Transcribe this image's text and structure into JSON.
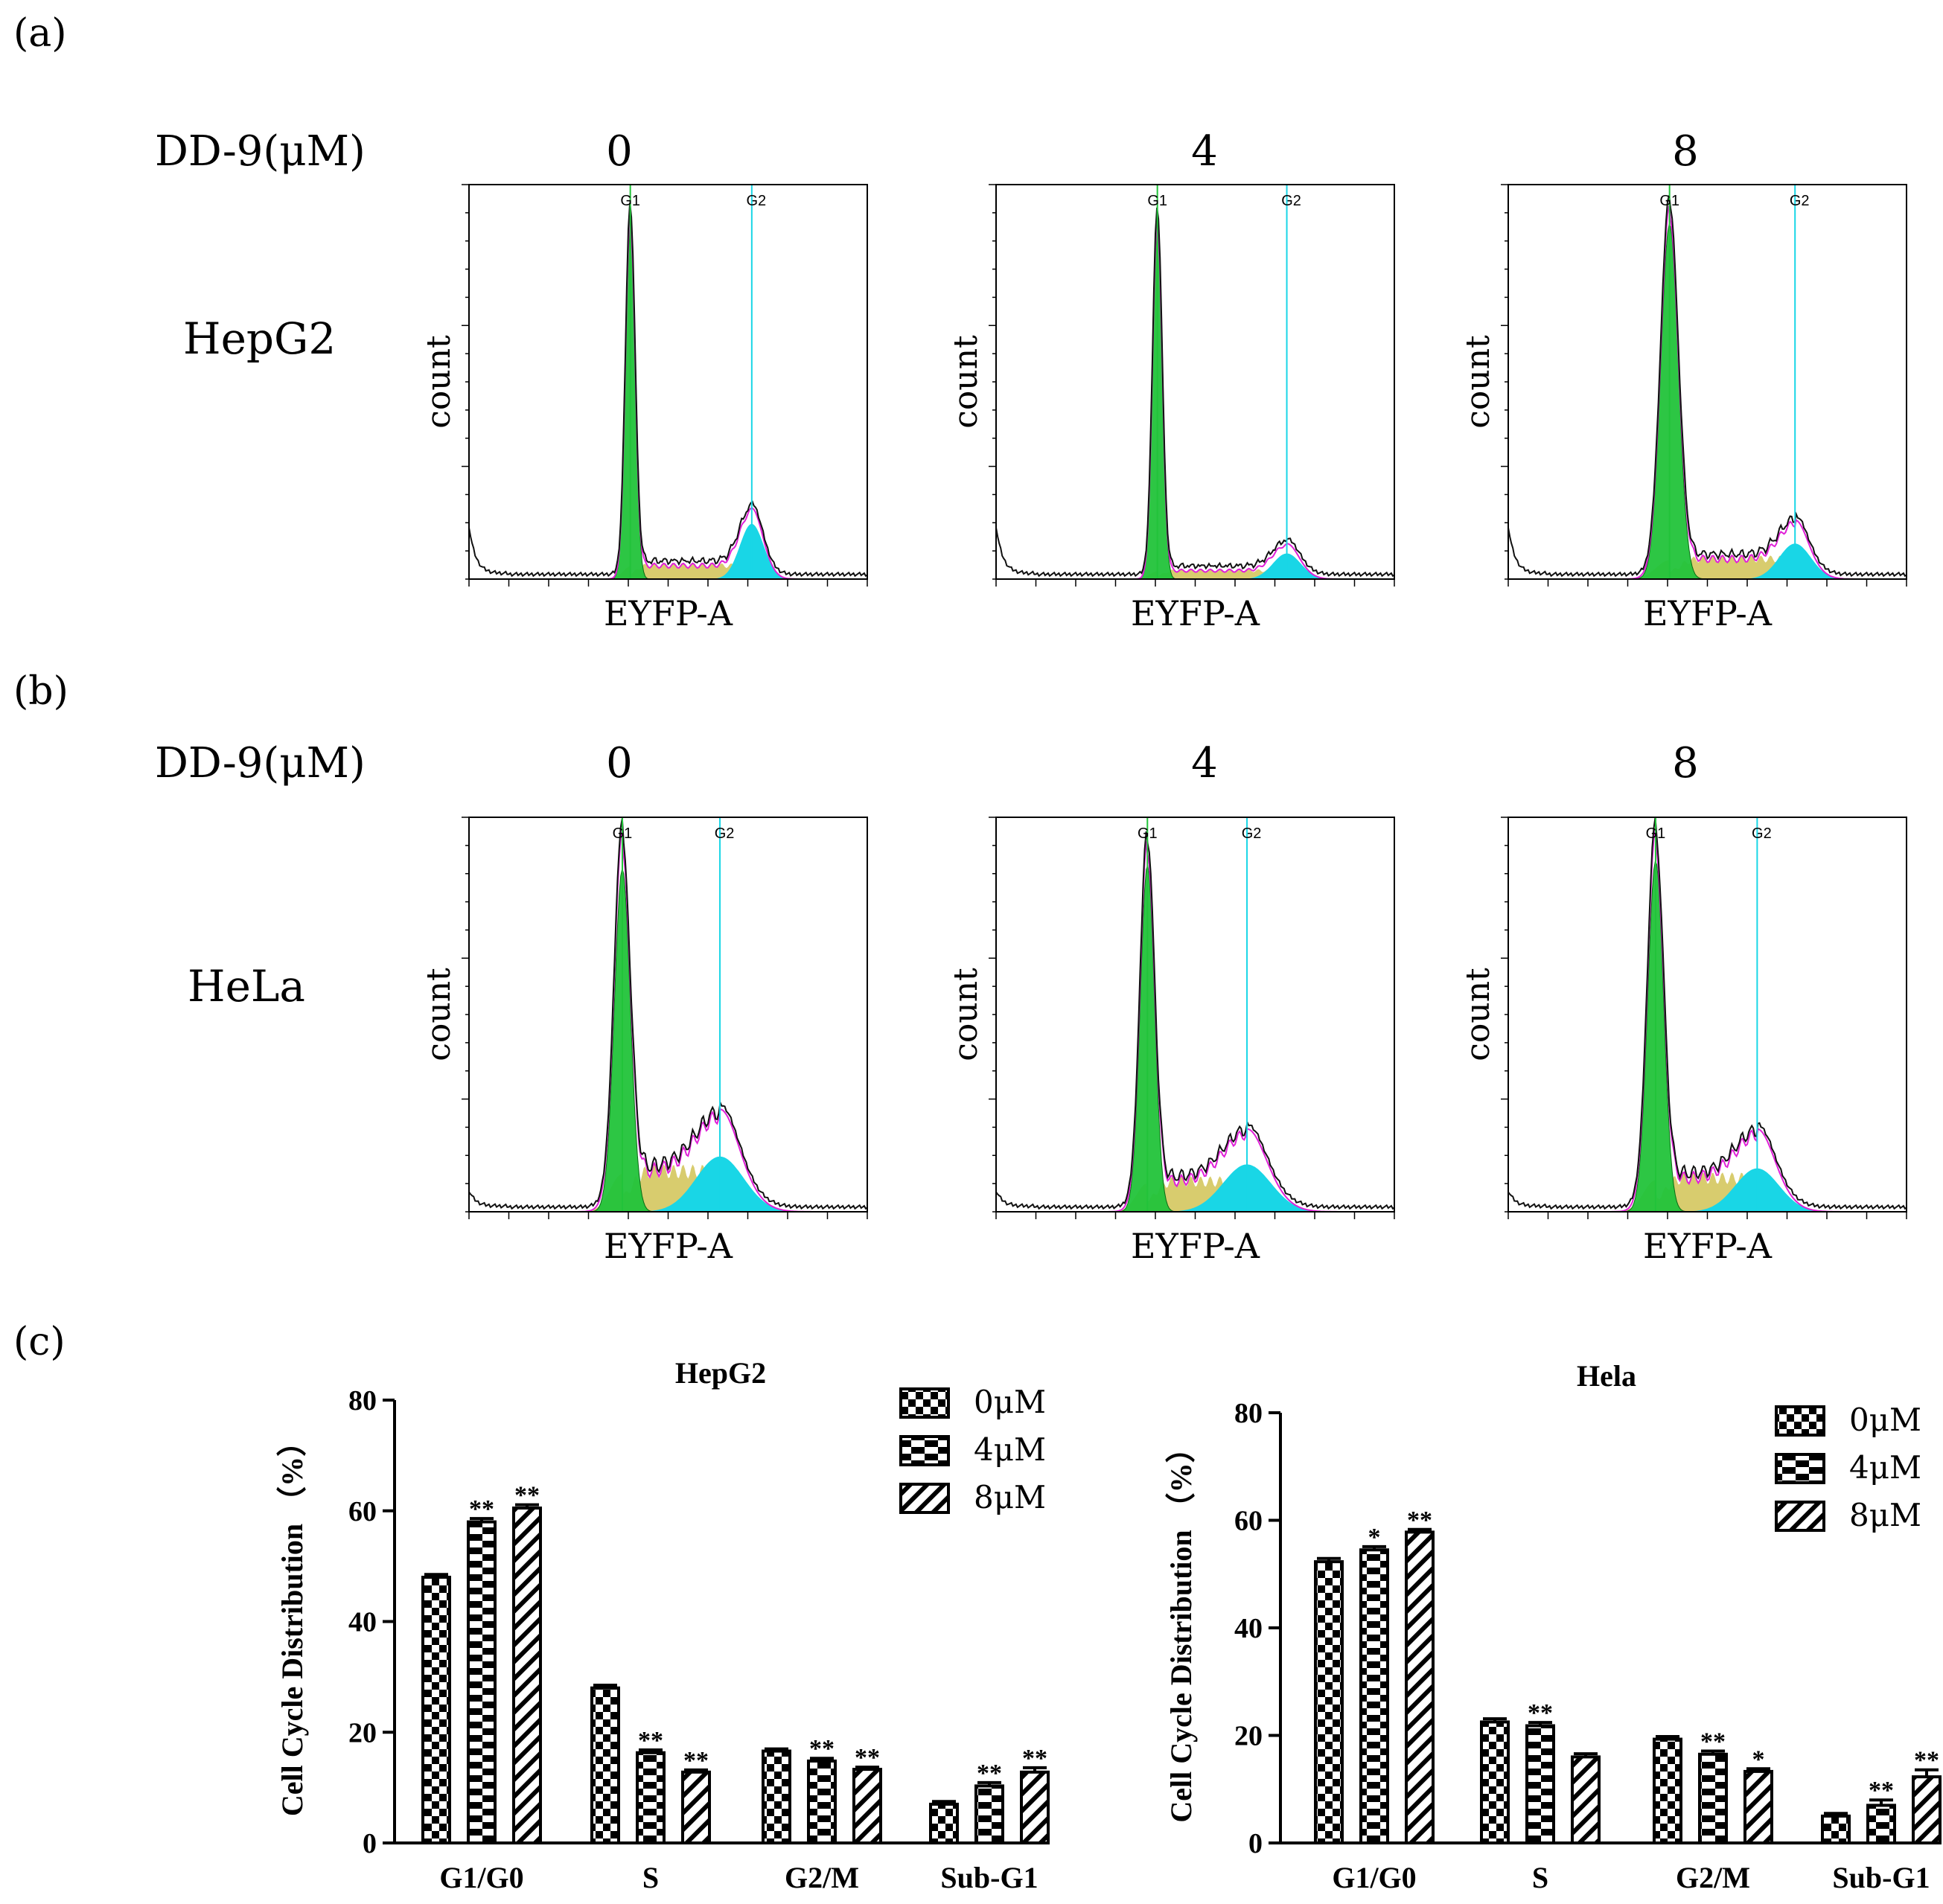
{
  "panel_labels": [
    "(a)",
    "(b)",
    "(c)"
  ],
  "dose_label": "DD-9(μM)",
  "doses": [
    "0",
    "4",
    "8"
  ],
  "cell_lines": [
    "HepG2",
    "HeLa"
  ],
  "histogram": {
    "xlabel": "EYFP-A",
    "ylabel": "count",
    "g1_marker": "G1",
    "g2_marker": "G2"
  },
  "chart_data": [
    {
      "type": "bar",
      "title": "HepG2",
      "ylabel": "Cell Cycle Distribution （%）",
      "xlabel": "",
      "categories": [
        "G1/G0",
        "S",
        "G2/M",
        "Sub-G1"
      ],
      "ylim": [
        0,
        80
      ],
      "yticks": [
        0,
        20,
        40,
        60,
        80
      ],
      "series": [
        {
          "name": "0μM",
          "pattern": "checker",
          "values": [
            48,
            28,
            16.6,
            7
          ],
          "errors": [
            0.5,
            0.5,
            0.4,
            0.5
          ],
          "sig": [
            "",
            "",
            "",
            ""
          ]
        },
        {
          "name": "4μM",
          "pattern": "blocks",
          "values": [
            58,
            16.3,
            14.8,
            10.3
          ],
          "errors": [
            0.6,
            0.5,
            0.5,
            0.6
          ],
          "sig": [
            "**",
            "**",
            "**",
            "**"
          ]
        },
        {
          "name": "8μM",
          "pattern": "hatch",
          "values": [
            60.5,
            12.8,
            13.3,
            12.8
          ],
          "errors": [
            0.6,
            0.4,
            0.4,
            0.8
          ],
          "sig": [
            "**",
            "**",
            "**",
            "**"
          ]
        }
      ],
      "legend_position": "top-right"
    },
    {
      "type": "bar",
      "title": "Hela",
      "ylabel": "Cell Cycle Distribution （%）",
      "xlabel": "",
      "categories": [
        "G1/G0",
        "S",
        "G2/M",
        "Sub-G1"
      ],
      "ylim": [
        0,
        80
      ],
      "yticks": [
        0,
        20,
        40,
        60,
        80
      ],
      "series": [
        {
          "name": "0μM",
          "pattern": "checker",
          "values": [
            52.3,
            22.5,
            19.3,
            5
          ],
          "errors": [
            0.6,
            0.6,
            0.5,
            0.5
          ],
          "sig": [
            "",
            "",
            "",
            ""
          ]
        },
        {
          "name": "4μM",
          "pattern": "blocks",
          "values": [
            54.5,
            21.8,
            16.5,
            7
          ],
          "errors": [
            0.6,
            0.6,
            0.6,
            1.0
          ],
          "sig": [
            "*",
            "**",
            "**",
            "**"
          ]
        },
        {
          "name": "8μM",
          "pattern": "hatch",
          "values": [
            57.8,
            16,
            13.3,
            12.3
          ],
          "errors": [
            0.5,
            0.6,
            0.5,
            1.3
          ],
          "sig": [
            "**",
            "",
            "*",
            "**"
          ]
        }
      ],
      "legend_position": "top-right"
    }
  ],
  "colors": {
    "g1_fill": "#22c33a",
    "g2_fill": "#19d6e6",
    "s_fill": "#d8cc6e",
    "fit_line": "#e020d8",
    "data_line": "#111111",
    "g1_line": "#22c33a",
    "g2_line": "#19d6e6"
  }
}
